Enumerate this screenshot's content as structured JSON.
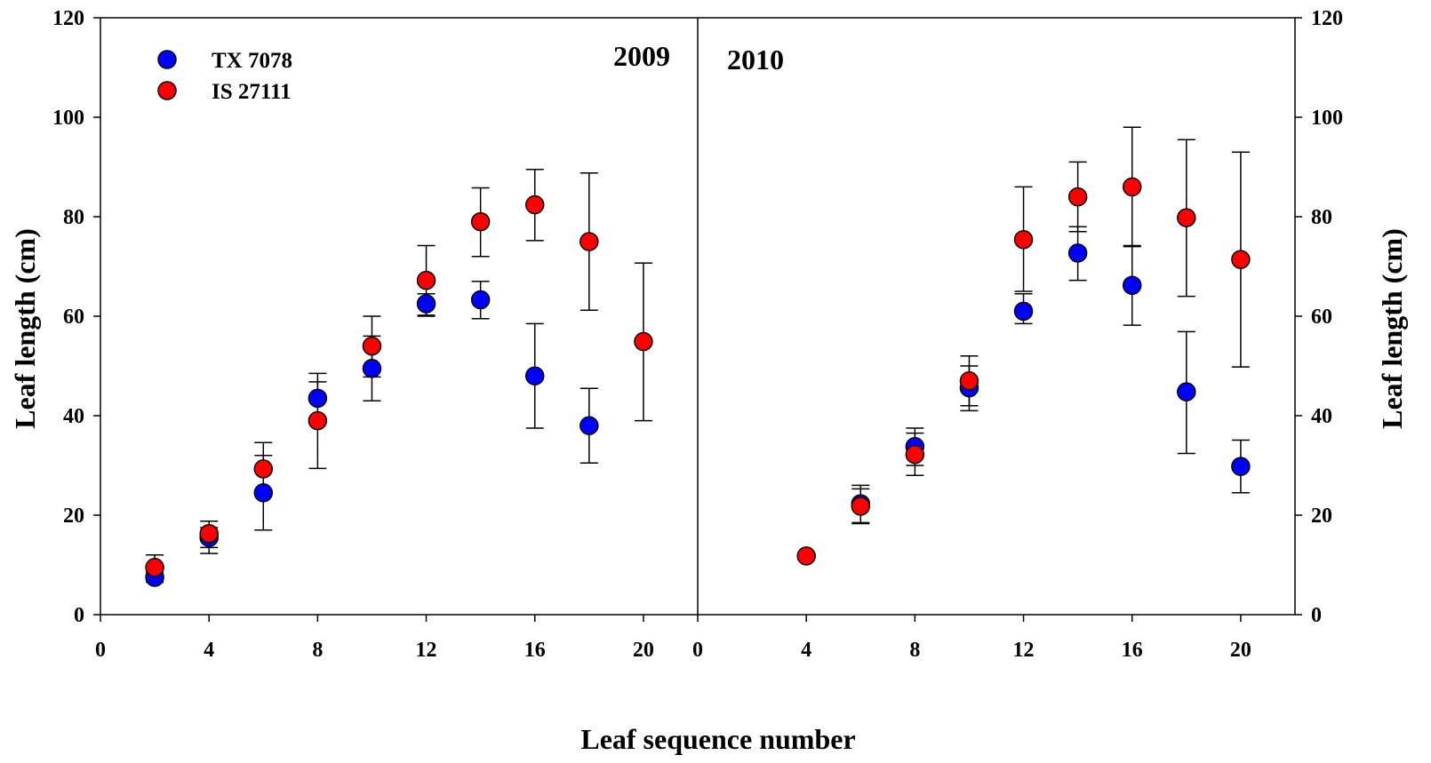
{
  "chart_data": {
    "type": "scatter",
    "xlabel": "Leaf sequence number",
    "ylabel": "Leaf length (cm)",
    "ylabel_right": "Leaf length (cm)",
    "ylim": [
      0,
      120
    ],
    "yticks": [
      0,
      20,
      40,
      60,
      80,
      100,
      120
    ],
    "legend": {
      "placement": "top-left",
      "entries": [
        {
          "name": "TX 7078",
          "color": "#0000ff"
        },
        {
          "name": "IS 27111",
          "color": "#ff0000"
        }
      ]
    },
    "panels": [
      {
        "label": "2009",
        "xlim": [
          0,
          22
        ],
        "xticks": [
          0,
          4,
          8,
          12,
          16,
          20
        ],
        "series": [
          {
            "name": "TX 7078",
            "color": "#0000ff",
            "points": [
              {
                "x": 2,
                "y": 7.5,
                "lo": 6.5,
                "hi": 8.5
              },
              {
                "x": 4,
                "y": 15.5,
                "lo": 13.5,
                "hi": 17.5
              },
              {
                "x": 6,
                "y": 24.5,
                "lo": 17.0,
                "hi": 32.0
              },
              {
                "x": 8,
                "y": 43.5,
                "lo": 38.5,
                "hi": 48.5
              },
              {
                "x": 10,
                "y": 49.5,
                "lo": 43.0,
                "hi": 56.0
              },
              {
                "x": 12,
                "y": 62.5,
                "lo": 60.0,
                "hi": 64.5
              },
              {
                "x": 14,
                "y": 63.3,
                "lo": 59.5,
                "hi": 67.0
              },
              {
                "x": 16,
                "y": 48.0,
                "lo": 37.5,
                "hi": 58.5
              },
              {
                "x": 18,
                "y": 38.0,
                "lo": 30.5,
                "hi": 45.5
              }
            ]
          },
          {
            "name": "IS 27111",
            "color": "#ff0000",
            "points": [
              {
                "x": 2,
                "y": 9.5,
                "lo": 7.0,
                "hi": 12.0
              },
              {
                "x": 4,
                "y": 16.3,
                "lo": 12.3,
                "hi": 18.8
              },
              {
                "x": 6,
                "y": 29.3,
                "lo": 24.0,
                "hi": 34.6
              },
              {
                "x": 8,
                "y": 39.0,
                "lo": 29.4,
                "hi": 46.8
              },
              {
                "x": 10,
                "y": 54.0,
                "lo": 47.8,
                "hi": 60.0
              },
              {
                "x": 12,
                "y": 67.2,
                "lo": 60.2,
                "hi": 74.2
              },
              {
                "x": 14,
                "y": 79.0,
                "lo": 72.0,
                "hi": 85.8
              },
              {
                "x": 16,
                "y": 82.4,
                "lo": 75.2,
                "hi": 89.5
              },
              {
                "x": 18,
                "y": 75.0,
                "lo": 61.2,
                "hi": 88.8
              },
              {
                "x": 20,
                "y": 54.9,
                "lo": 39.0,
                "hi": 70.7
              }
            ]
          }
        ]
      },
      {
        "label": "2010",
        "xlim": [
          0,
          22
        ],
        "xticks": [
          0,
          4,
          8,
          12,
          16,
          20
        ],
        "series": [
          {
            "name": "TX 7078",
            "color": "#0000ff",
            "points": [
              {
                "x": 6,
                "y": 22.3,
                "lo": 18.5,
                "hi": 26.0
              },
              {
                "x": 8,
                "y": 33.8,
                "lo": 30.0,
                "hi": 37.5
              },
              {
                "x": 10,
                "y": 45.6,
                "lo": 41.0,
                "hi": 50.0
              },
              {
                "x": 12,
                "y": 61.0,
                "lo": 58.5,
                "hi": 64.5
              },
              {
                "x": 14,
                "y": 72.7,
                "lo": 67.2,
                "hi": 78.0
              },
              {
                "x": 16,
                "y": 66.2,
                "lo": 58.2,
                "hi": 74.2
              },
              {
                "x": 18,
                "y": 44.8,
                "lo": 32.4,
                "hi": 56.9
              },
              {
                "x": 20,
                "y": 29.8,
                "lo": 24.5,
                "hi": 35.1
              }
            ]
          },
          {
            "name": "IS 27111",
            "color": "#ff0000",
            "points": [
              {
                "x": 4,
                "y": 11.8,
                "lo": 11.8,
                "hi": 11.8
              },
              {
                "x": 6,
                "y": 21.8,
                "lo": 18.3,
                "hi": 25.3
              },
              {
                "x": 8,
                "y": 32.2,
                "lo": 28.0,
                "hi": 36.5
              },
              {
                "x": 10,
                "y": 47.0,
                "lo": 42.0,
                "hi": 52.0
              },
              {
                "x": 12,
                "y": 75.4,
                "lo": 65.0,
                "hi": 86.0
              },
              {
                "x": 14,
                "y": 84.0,
                "lo": 77.0,
                "hi": 91.0
              },
              {
                "x": 16,
                "y": 86.0,
                "lo": 74.0,
                "hi": 98.0
              },
              {
                "x": 18,
                "y": 79.8,
                "lo": 64.0,
                "hi": 95.5
              },
              {
                "x": 20,
                "y": 71.4,
                "lo": 49.8,
                "hi": 93.0
              }
            ]
          }
        ]
      }
    ]
  }
}
